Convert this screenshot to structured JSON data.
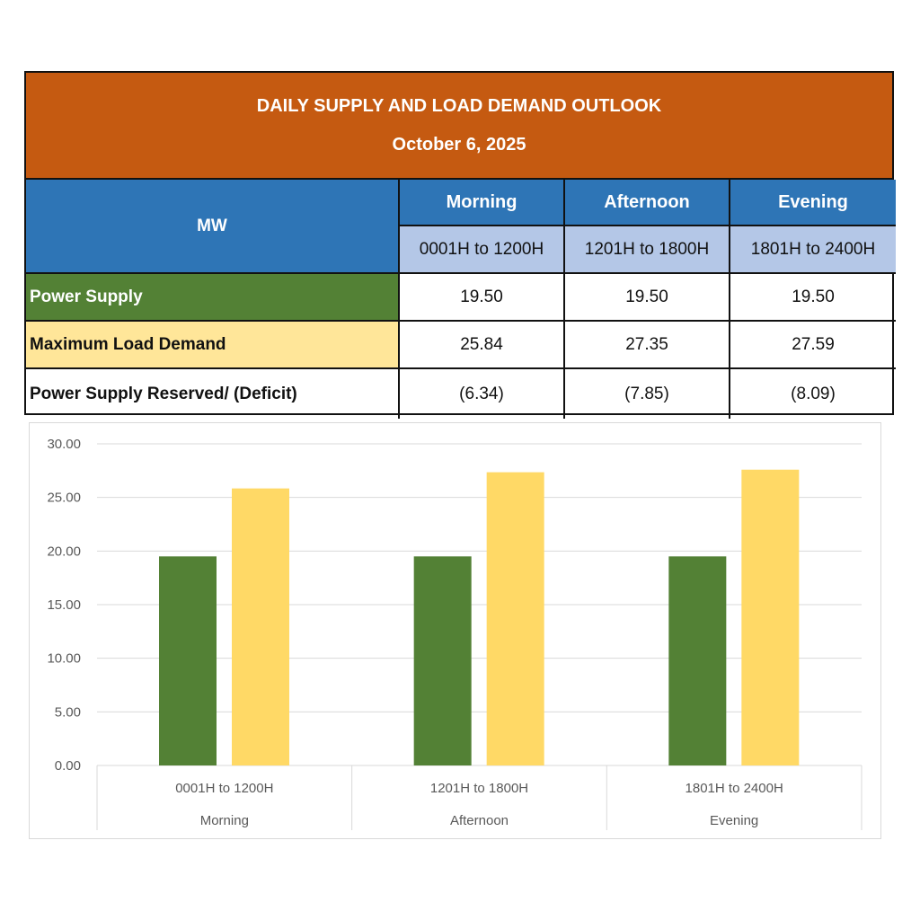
{
  "table": {
    "title": "DAILY SUPPLY AND LOAD DEMAND OUTLOOK",
    "date": "October 6, 2025",
    "unit_label": "MW",
    "periods": [
      {
        "name": "Morning",
        "range": "0001H to 1200H"
      },
      {
        "name": "Afternoon",
        "range": "1201H to 1800H"
      },
      {
        "name": "Evening",
        "range": "1801H to 2400H"
      }
    ],
    "rows": [
      {
        "label": "Power Supply",
        "values": [
          "19.50",
          "19.50",
          "19.50"
        ]
      },
      {
        "label": "Maximum Load Demand",
        "values": [
          "25.84",
          "27.35",
          "27.59"
        ]
      },
      {
        "label": "Power Supply Reserved/ (Deficit)",
        "values": [
          "(6.34)",
          "(7.85)",
          "(8.09)"
        ]
      }
    ],
    "colors": {
      "title": "#c55a11",
      "header": "#2e75b6",
      "subheader": "#b4c7e7",
      "supply": "#538135",
      "demand": "#ffe699"
    }
  },
  "chart_data": {
    "type": "bar",
    "categories": [
      {
        "sub": "0001H to 1200H",
        "group": "Morning"
      },
      {
        "sub": "1201H to 1800H",
        "group": "Afternoon"
      },
      {
        "sub": "1801H to 2400H",
        "group": "Evening"
      }
    ],
    "series": [
      {
        "values": [
          19.5,
          19.5,
          19.5
        ],
        "color": "#538135"
      },
      {
        "values": [
          25.84,
          27.35,
          27.59
        ],
        "color": "#ffd966"
      }
    ],
    "ylim": [
      0,
      30
    ],
    "yticks": [
      "0.00",
      "5.00",
      "10.00",
      "15.00",
      "20.00",
      "25.00",
      "30.00"
    ],
    "grid": true,
    "legend": "none"
  }
}
